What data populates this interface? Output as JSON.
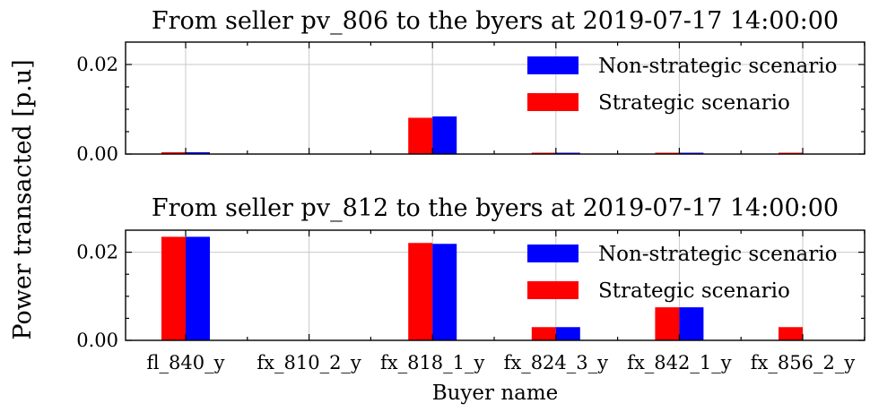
{
  "ylabel": "Power transacted [p.u]",
  "xlabel": "Buyer name",
  "categories": [
    "fl_840_y",
    "fx_810_2_y",
    "fx_818_1_y",
    "fx_824_3_y",
    "fx_842_1_y",
    "fx_856_2_y"
  ],
  "colors": {
    "strategic": "#ff0000",
    "non_strategic": "#0000ff"
  },
  "chart_data": [
    {
      "type": "bar",
      "title": "From seller pv_806 to the byers at 2019-07-17 14:00:00",
      "categories": [
        "fl_840_y",
        "fx_810_2_y",
        "fx_818_1_y",
        "fx_824_3_y",
        "fx_842_1_y",
        "fx_856_2_y"
      ],
      "series": [
        {
          "name": "Strategic scenario",
          "values": [
            0.0004,
            0.0,
            0.0081,
            0.0003,
            0.0003,
            0.0003
          ]
        },
        {
          "name": "Non-strategic scenario",
          "values": [
            0.0004,
            0.0,
            0.0084,
            0.0003,
            0.0003,
            0.0
          ]
        }
      ],
      "ylim": [
        0,
        0.025
      ],
      "yticks": [
        "0.00",
        "0.02"
      ],
      "ytick_values": [
        0,
        0.02
      ],
      "grid": true,
      "legend": {
        "placement": "upper-right",
        "entries": [
          "Non-strategic scenario",
          "Strategic scenario"
        ]
      }
    },
    {
      "type": "bar",
      "title": "From seller pv_812 to the byers at 2019-07-17 14:00:00",
      "categories": [
        "fl_840_y",
        "fx_810_2_y",
        "fx_818_1_y",
        "fx_824_3_y",
        "fx_842_1_y",
        "fx_856_2_y"
      ],
      "series": [
        {
          "name": "Strategic scenario",
          "values": [
            0.0235,
            0.0,
            0.0221,
            0.003,
            0.0075,
            0.003
          ]
        },
        {
          "name": "Non-strategic scenario",
          "values": [
            0.0235,
            0.0,
            0.0219,
            0.003,
            0.0075,
            0.0
          ]
        }
      ],
      "ylim": [
        0,
        0.025
      ],
      "yticks": [
        "0.00",
        "0.02"
      ],
      "ytick_values": [
        0,
        0.02
      ],
      "grid": true,
      "legend": {
        "placement": "upper-right",
        "entries": [
          "Non-strategic scenario",
          "Strategic scenario"
        ]
      }
    }
  ]
}
